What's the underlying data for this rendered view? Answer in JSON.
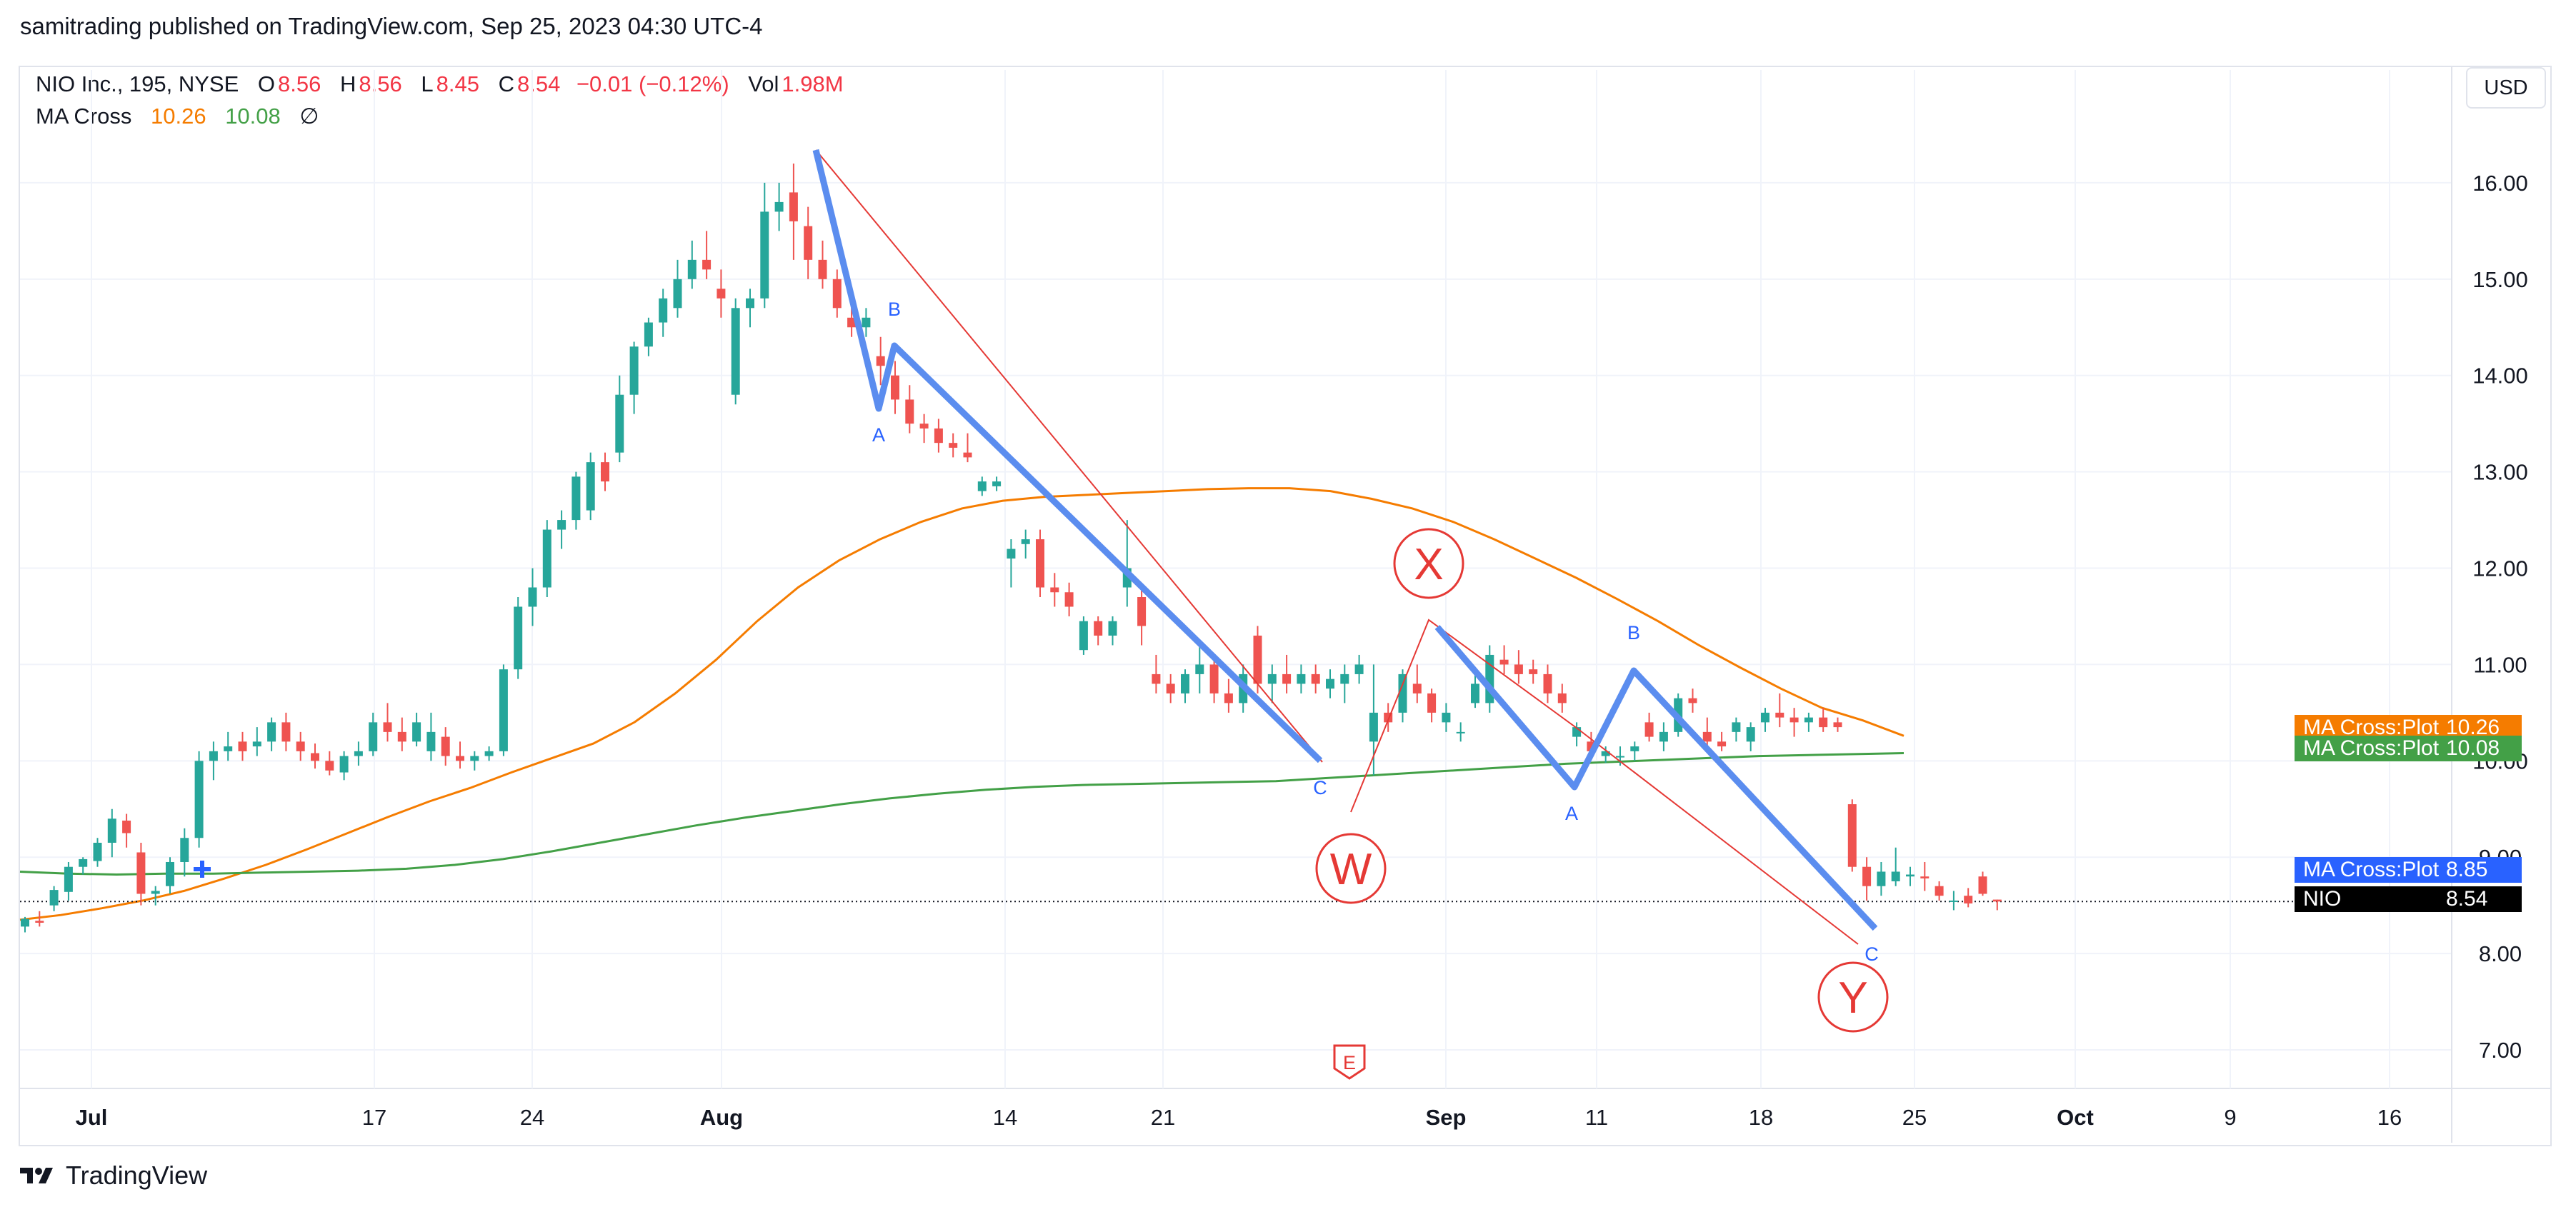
{
  "header": {
    "text": "samitrading published on TradingView.com, Sep 25, 2023 04:30 UTC-4"
  },
  "legend": {
    "symbol": "NIO Inc., 195, NYSE",
    "o_label": "O",
    "o_value": "8.56",
    "h_label": "H",
    "h_value": "8.56",
    "l_label": "L",
    "l_value": "8.45",
    "c_label": "C",
    "c_value": "8.54",
    "change": "−0.01 (−0.12%)",
    "vol_label": "Vol",
    "vol_value": "1.98M",
    "ma_label": "MA Cross",
    "ma1_value": "10.26",
    "ma2_value": "10.08",
    "ma_extra": "∅"
  },
  "currency_button": "USD",
  "footer": {
    "brand": "TradingView"
  },
  "price_tags": [
    {
      "name": "MA Cross:Plot",
      "value": "10.26",
      "color": "#f57c00"
    },
    {
      "name": "MA Cross:Plot",
      "value": "10.08",
      "color": "#43a047"
    },
    {
      "name": "MA Cross:Plot",
      "value": "8.85",
      "color": "#2962ff"
    },
    {
      "name": "NIO",
      "value": "8.54",
      "color": "#000000"
    }
  ],
  "chart_data": {
    "type": "candlestick",
    "y_ticks": [
      "7.00",
      "8.00",
      "9.00",
      "10.00",
      "11.00",
      "12.00",
      "13.00",
      "14.00",
      "15.00",
      "16.00"
    ],
    "x_ticks": [
      "Jul",
      "17",
      "24",
      "Aug",
      "14",
      "21",
      "Sep",
      "11",
      "18",
      "25",
      "Oct",
      "9",
      "16"
    ],
    "ylim": [
      6.6,
      16.8
    ],
    "up_color": "#26a69a",
    "down_color": "#ef5350",
    "candles": [
      [
        8.28,
        8.38,
        8.22,
        8.36
      ],
      [
        8.34,
        8.44,
        8.28,
        8.32
      ],
      [
        8.5,
        8.7,
        8.44,
        8.66
      ],
      [
        8.64,
        8.95,
        8.55,
        8.9
      ],
      [
        8.9,
        9.0,
        8.82,
        8.98
      ],
      [
        8.96,
        9.2,
        8.9,
        9.15
      ],
      [
        9.15,
        9.5,
        9.0,
        9.4
      ],
      [
        9.38,
        9.45,
        9.1,
        9.25
      ],
      [
        9.05,
        9.15,
        8.5,
        8.62
      ],
      [
        8.62,
        8.7,
        8.5,
        8.65
      ],
      [
        8.7,
        9.0,
        8.62,
        8.95
      ],
      [
        8.95,
        9.3,
        8.8,
        9.2
      ],
      [
        9.2,
        10.1,
        9.1,
        10.0
      ],
      [
        10.0,
        10.2,
        9.8,
        10.1
      ],
      [
        10.1,
        10.3,
        10.0,
        10.15
      ],
      [
        10.2,
        10.3,
        10.0,
        10.1
      ],
      [
        10.15,
        10.35,
        10.05,
        10.2
      ],
      [
        10.2,
        10.45,
        10.1,
        10.4
      ],
      [
        10.4,
        10.5,
        10.1,
        10.2
      ],
      [
        10.2,
        10.3,
        10.0,
        10.1
      ],
      [
        10.08,
        10.18,
        9.92,
        10.0
      ],
      [
        10.0,
        10.1,
        9.85,
        9.9
      ],
      [
        9.88,
        10.1,
        9.8,
        10.05
      ],
      [
        10.05,
        10.2,
        9.95,
        10.1
      ],
      [
        10.1,
        10.5,
        10.05,
        10.4
      ],
      [
        10.4,
        10.6,
        10.2,
        10.3
      ],
      [
        10.3,
        10.45,
        10.1,
        10.2
      ],
      [
        10.2,
        10.5,
        10.15,
        10.4
      ],
      [
        10.1,
        10.5,
        10.0,
        10.3
      ],
      [
        10.25,
        10.35,
        9.95,
        10.05
      ],
      [
        10.05,
        10.2,
        9.92,
        10.0
      ],
      [
        10.0,
        10.1,
        9.9,
        10.05
      ],
      [
        10.05,
        10.15,
        10.0,
        10.1
      ],
      [
        10.1,
        11.0,
        10.05,
        10.95
      ],
      [
        10.95,
        11.7,
        10.85,
        11.6
      ],
      [
        11.6,
        12.0,
        11.4,
        11.8
      ],
      [
        11.8,
        12.5,
        11.7,
        12.4
      ],
      [
        12.4,
        12.6,
        12.2,
        12.5
      ],
      [
        12.5,
        13.0,
        12.4,
        12.95
      ],
      [
        12.6,
        13.2,
        12.5,
        13.1
      ],
      [
        13.1,
        13.2,
        12.8,
        12.9
      ],
      [
        13.2,
        14.0,
        13.1,
        13.8
      ],
      [
        13.8,
        14.35,
        13.6,
        14.3
      ],
      [
        14.3,
        14.6,
        14.2,
        14.55
      ],
      [
        14.55,
        14.9,
        14.4,
        14.8
      ],
      [
        14.7,
        15.2,
        14.6,
        15.0
      ],
      [
        15.0,
        15.4,
        14.9,
        15.2
      ],
      [
        15.2,
        15.5,
        15.0,
        15.1
      ],
      [
        14.9,
        15.1,
        14.6,
        14.8
      ],
      [
        13.8,
        14.8,
        13.7,
        14.7
      ],
      [
        14.7,
        14.9,
        14.5,
        14.8
      ],
      [
        14.8,
        16.0,
        14.7,
        15.7
      ],
      [
        15.7,
        16.0,
        15.5,
        15.8
      ],
      [
        15.9,
        16.2,
        15.2,
        15.6
      ],
      [
        15.55,
        15.75,
        15.0,
        15.2
      ],
      [
        15.2,
        15.4,
        14.9,
        15.0
      ],
      [
        15.0,
        15.1,
        14.6,
        14.7
      ],
      [
        14.6,
        14.8,
        14.4,
        14.5
      ],
      [
        14.5,
        14.7,
        14.4,
        14.6
      ],
      [
        14.2,
        14.4,
        13.9,
        14.1
      ],
      [
        14.0,
        14.15,
        13.6,
        13.75
      ],
      [
        13.75,
        13.9,
        13.4,
        13.5
      ],
      [
        13.5,
        13.6,
        13.3,
        13.45
      ],
      [
        13.45,
        13.55,
        13.2,
        13.3
      ],
      [
        13.3,
        13.4,
        13.15,
        13.25
      ],
      [
        13.2,
        13.4,
        13.1,
        13.15
      ],
      [
        12.8,
        12.95,
        12.75,
        12.9
      ],
      [
        12.85,
        12.95,
        12.8,
        12.9
      ],
      [
        12.1,
        12.3,
        11.8,
        12.2
      ],
      [
        12.25,
        12.4,
        12.1,
        12.3
      ],
      [
        12.3,
        12.4,
        11.7,
        11.8
      ],
      [
        11.8,
        11.95,
        11.6,
        11.75
      ],
      [
        11.75,
        11.85,
        11.5,
        11.6
      ],
      [
        11.15,
        11.5,
        11.1,
        11.45
      ],
      [
        11.45,
        11.5,
        11.2,
        11.3
      ],
      [
        11.3,
        11.5,
        11.2,
        11.45
      ],
      [
        11.8,
        12.5,
        11.6,
        12.0
      ],
      [
        11.7,
        11.8,
        11.2,
        11.4
      ],
      [
        10.9,
        11.1,
        10.7,
        10.8
      ],
      [
        10.8,
        10.9,
        10.6,
        10.7
      ],
      [
        10.7,
        10.95,
        10.6,
        10.9
      ],
      [
        10.9,
        11.2,
        10.7,
        11.0
      ],
      [
        11.0,
        11.1,
        10.6,
        10.7
      ],
      [
        10.7,
        10.85,
        10.5,
        10.6
      ],
      [
        10.6,
        11.0,
        10.5,
        10.9
      ],
      [
        11.3,
        11.4,
        10.7,
        10.8
      ],
      [
        10.8,
        11.0,
        10.6,
        10.9
      ],
      [
        10.9,
        11.1,
        10.7,
        10.8
      ],
      [
        10.8,
        11.0,
        10.7,
        10.9
      ],
      [
        10.9,
        11.0,
        10.7,
        10.8
      ],
      [
        10.75,
        10.95,
        10.65,
        10.85
      ],
      [
        10.8,
        11.0,
        10.6,
        10.9
      ],
      [
        10.9,
        11.1,
        10.8,
        11.0
      ],
      [
        10.2,
        11.0,
        9.85,
        10.5
      ],
      [
        10.5,
        10.6,
        10.3,
        10.4
      ],
      [
        10.5,
        10.95,
        10.4,
        10.9
      ],
      [
        10.8,
        11.0,
        10.6,
        10.7
      ],
      [
        10.7,
        10.75,
        10.4,
        10.5
      ],
      [
        10.4,
        10.6,
        10.3,
        10.5
      ],
      [
        10.3,
        10.4,
        10.2,
        10.3
      ],
      [
        10.6,
        10.9,
        10.55,
        10.8
      ],
      [
        10.6,
        11.2,
        10.5,
        11.1
      ],
      [
        11.05,
        11.2,
        10.9,
        11.0
      ],
      [
        11.0,
        11.15,
        10.8,
        10.9
      ],
      [
        10.95,
        11.05,
        10.8,
        10.9
      ],
      [
        10.9,
        11.0,
        10.6,
        10.7
      ],
      [
        10.7,
        10.8,
        10.5,
        10.6
      ],
      [
        10.25,
        10.4,
        10.15,
        10.35
      ],
      [
        10.2,
        10.3,
        10.05,
        10.1
      ],
      [
        10.05,
        10.15,
        9.98,
        10.1
      ],
      [
        10.05,
        10.15,
        9.95,
        10.05
      ],
      [
        10.1,
        10.2,
        10.0,
        10.15
      ],
      [
        10.4,
        10.5,
        10.2,
        10.25
      ],
      [
        10.2,
        10.4,
        10.1,
        10.3
      ],
      [
        10.3,
        10.7,
        10.25,
        10.65
      ],
      [
        10.65,
        10.75,
        10.5,
        10.6
      ],
      [
        10.3,
        10.45,
        10.1,
        10.2
      ],
      [
        10.2,
        10.3,
        10.1,
        10.15
      ],
      [
        10.3,
        10.45,
        10.2,
        10.4
      ],
      [
        10.2,
        10.4,
        10.1,
        10.35
      ],
      [
        10.4,
        10.55,
        10.3,
        10.5
      ],
      [
        10.5,
        10.7,
        10.35,
        10.45
      ],
      [
        10.45,
        10.55,
        10.25,
        10.4
      ],
      [
        10.4,
        10.5,
        10.3,
        10.45
      ],
      [
        10.45,
        10.55,
        10.3,
        10.35
      ],
      [
        10.4,
        10.45,
        10.3,
        10.35
      ],
      [
        9.55,
        9.6,
        8.85,
        8.9
      ],
      [
        8.9,
        9.0,
        8.55,
        8.7
      ],
      [
        8.7,
        8.95,
        8.6,
        8.85
      ],
      [
        8.75,
        9.1,
        8.7,
        8.85
      ],
      [
        8.8,
        8.9,
        8.7,
        8.82
      ],
      [
        8.8,
        8.95,
        8.65,
        8.78
      ],
      [
        8.7,
        8.75,
        8.55,
        8.6
      ],
      [
        8.55,
        8.65,
        8.45,
        8.55
      ],
      [
        8.6,
        8.68,
        8.48,
        8.52
      ],
      [
        8.8,
        8.85,
        8.6,
        8.62
      ],
      [
        8.56,
        8.56,
        8.45,
        8.54
      ]
    ],
    "ma_fast": [
      8.35,
      8.4,
      8.47,
      8.55,
      8.65,
      8.78,
      8.92,
      9.08,
      9.25,
      9.42,
      9.58,
      9.72,
      9.88,
      10.03,
      10.18,
      10.4,
      10.7,
      11.05,
      11.45,
      11.8,
      12.08,
      12.3,
      12.48,
      12.62,
      12.7,
      12.74,
      12.76,
      12.78,
      12.8,
      12.82,
      12.83,
      12.83,
      12.8,
      12.72,
      12.62,
      12.48,
      12.3,
      12.1,
      11.9,
      11.68,
      11.45,
      11.2,
      10.97,
      10.75,
      10.55,
      10.42,
      10.26
    ],
    "ma_slow": [
      8.85,
      8.83,
      8.82,
      8.83,
      8.83,
      8.84,
      8.85,
      8.86,
      8.88,
      8.92,
      8.98,
      9.06,
      9.15,
      9.24,
      9.33,
      9.41,
      9.48,
      9.55,
      9.61,
      9.66,
      9.7,
      9.73,
      9.75,
      9.76,
      9.77,
      9.78,
      9.79,
      9.82,
      9.85,
      9.88,
      9.91,
      9.94,
      9.97,
      9.99,
      10.01,
      10.03,
      10.05,
      10.06,
      10.07,
      10.08
    ],
    "annotations": [
      {
        "type": "wave-label",
        "text": "W",
        "x_index": 96,
        "price": 9.4
      },
      {
        "type": "wave-label",
        "text": "X",
        "x_index": 101,
        "price": 11.9
      },
      {
        "type": "wave-label",
        "text": "Y",
        "x_index": 133,
        "price": 7.8
      }
    ],
    "small_labels": [
      "A",
      "B",
      "C",
      "A",
      "B",
      "C"
    ],
    "event_marker": "E"
  }
}
